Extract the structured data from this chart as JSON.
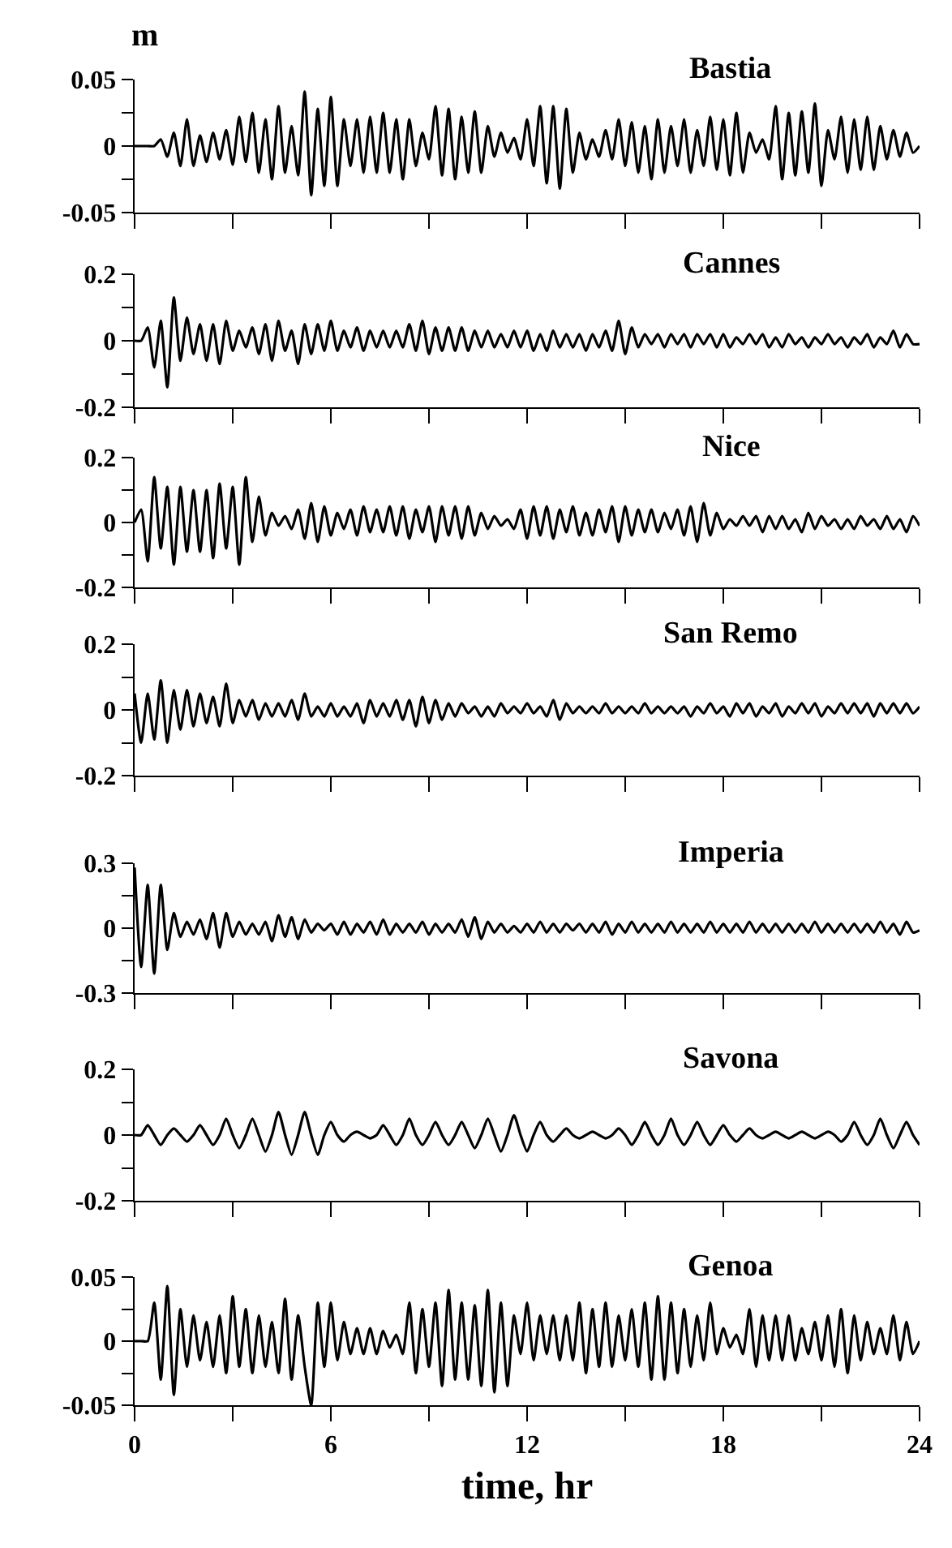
{
  "chart_data": [
    {
      "type": "line",
      "title": "Bastia",
      "ylabel": "m",
      "tick_labels": "y",
      "xlim": [
        0,
        24
      ],
      "xticks": [
        0,
        {
          "value": 3,
          "label": null
        },
        6,
        {
          "value": 9,
          "label": null
        },
        12,
        {
          "value": 15,
          "label": null
        },
        18,
        {
          "value": 21,
          "label": null
        },
        24
      ],
      "ylim": [
        -0.05,
        0.05
      ],
      "yticks": [
        -0.05,
        {
          "value": -0.025,
          "label": null
        },
        0,
        {
          "value": 0.025,
          "label": null
        },
        0.05
      ],
      "x": [
        0,
        0.2,
        0.4,
        0.6,
        0.8,
        1,
        1.2,
        1.4,
        1.6,
        1.8,
        2,
        2.2,
        2.4,
        2.6,
        2.8,
        3,
        3.2,
        3.4,
        3.6,
        3.8,
        4,
        4.2,
        4.4,
        4.6,
        4.8,
        5,
        5.2,
        5.4,
        5.6,
        5.8,
        6,
        6.2,
        6.4,
        6.6,
        6.8,
        7,
        7.2,
        7.4,
        7.6,
        7.8,
        8,
        8.2,
        8.4,
        8.6,
        8.8,
        9,
        9.2,
        9.4,
        9.6,
        9.8,
        10,
        10.2,
        10.4,
        10.6,
        10.8,
        11,
        11.2,
        11.4,
        11.6,
        11.8,
        12,
        12.2,
        12.4,
        12.6,
        12.8,
        13,
        13.2,
        13.4,
        13.6,
        13.8,
        14,
        14.2,
        14.4,
        14.6,
        14.8,
        15,
        15.2,
        15.4,
        15.6,
        15.8,
        16,
        16.2,
        16.4,
        16.6,
        16.8,
        17,
        17.2,
        17.4,
        17.6,
        17.8,
        18,
        18.2,
        18.4,
        18.6,
        18.8,
        19,
        19.2,
        19.4,
        19.6,
        19.8,
        20,
        20.2,
        20.4,
        20.6,
        20.8,
        21,
        21.2,
        21.4,
        21.6,
        21.8,
        22,
        22.2,
        22.4,
        22.6,
        22.8,
        23,
        23.2,
        23.4,
        23.6,
        23.8,
        24
      ],
      "series": [
        {
          "color": "#000000",
          "values": [
            0,
            0,
            0,
            0,
            0.005,
            -0.008,
            0.01,
            -0.015,
            0.02,
            -0.015,
            0.008,
            -0.012,
            0.01,
            -0.01,
            0.012,
            -0.014,
            0.022,
            -0.012,
            0.025,
            -0.02,
            0.02,
            -0.025,
            0.03,
            -0.02,
            0.015,
            -0.022,
            0.041,
            -0.037,
            0.028,
            -0.03,
            0.037,
            -0.03,
            0.02,
            -0.015,
            0.02,
            -0.02,
            0.022,
            -0.02,
            0.025,
            -0.02,
            0.02,
            -0.025,
            0.02,
            -0.015,
            0.01,
            -0.01,
            0.03,
            -0.022,
            0.028,
            -0.025,
            0.022,
            -0.02,
            0.026,
            -0.02,
            0.015,
            -0.008,
            0.01,
            -0.005,
            0.006,
            -0.01,
            0.02,
            -0.015,
            0.03,
            -0.028,
            0.03,
            -0.032,
            0.028,
            -0.02,
            0.01,
            -0.01,
            0.005,
            -0.008,
            0.012,
            -0.01,
            0.02,
            -0.015,
            0.018,
            -0.02,
            0.015,
            -0.025,
            0.02,
            -0.02,
            0.015,
            -0.015,
            0.02,
            -0.02,
            0.012,
            -0.015,
            0.022,
            -0.018,
            0.02,
            -0.022,
            0.025,
            -0.02,
            0.01,
            -0.005,
            0.005,
            -0.01,
            0.03,
            -0.025,
            0.025,
            -0.022,
            0.026,
            -0.02,
            0.032,
            -0.03,
            0.012,
            -0.01,
            0.022,
            -0.02,
            0.02,
            -0.018,
            0.022,
            -0.018,
            0.015,
            -0.01,
            0.012,
            -0.008,
            0.01,
            -0.005,
            0
          ]
        }
      ]
    },
    {
      "type": "line",
      "title": "Cannes",
      "tick_labels": "y",
      "xlim": [
        0,
        24
      ],
      "xticks": [
        0,
        {
          "value": 3,
          "label": null
        },
        6,
        {
          "value": 9,
          "label": null
        },
        12,
        {
          "value": 15,
          "label": null
        },
        18,
        {
          "value": 21,
          "label": null
        },
        24
      ],
      "ylim": [
        -0.2,
        0.2
      ],
      "yticks": [
        -0.2,
        {
          "value": -0.1,
          "label": null
        },
        0,
        {
          "value": 0.1,
          "label": null
        },
        0.2
      ],
      "x": [
        0,
        0.2,
        0.4,
        0.6,
        0.8,
        1,
        1.2,
        1.4,
        1.6,
        1.8,
        2,
        2.2,
        2.4,
        2.6,
        2.8,
        3,
        3.2,
        3.4,
        3.6,
        3.8,
        4,
        4.2,
        4.4,
        4.6,
        4.8,
        5,
        5.2,
        5.4,
        5.6,
        5.8,
        6,
        6.2,
        6.4,
        6.6,
        6.8,
        7,
        7.2,
        7.4,
        7.6,
        7.8,
        8,
        8.2,
        8.4,
        8.6,
        8.8,
        9,
        9.2,
        9.4,
        9.6,
        9.8,
        10,
        10.2,
        10.4,
        10.6,
        10.8,
        11,
        11.2,
        11.4,
        11.6,
        11.8,
        12,
        12.2,
        12.4,
        12.6,
        12.8,
        13,
        13.2,
        13.4,
        13.6,
        13.8,
        14,
        14.2,
        14.4,
        14.6,
        14.8,
        15,
        15.2,
        15.4,
        15.6,
        15.8,
        16,
        16.2,
        16.4,
        16.6,
        16.8,
        17,
        17.2,
        17.4,
        17.6,
        17.8,
        18,
        18.2,
        18.4,
        18.6,
        18.8,
        19,
        19.2,
        19.4,
        19.6,
        19.8,
        20,
        20.2,
        20.4,
        20.6,
        20.8,
        21,
        21.2,
        21.4,
        21.6,
        21.8,
        22,
        22.2,
        22.4,
        22.6,
        22.8,
        23,
        23.2,
        23.4,
        23.6,
        23.8,
        24
      ],
      "series": [
        {
          "color": "#000000",
          "values": [
            0,
            0,
            0.04,
            -0.08,
            0.06,
            -0.14,
            0.13,
            -0.06,
            0.07,
            -0.04,
            0.05,
            -0.06,
            0.05,
            -0.07,
            0.06,
            -0.03,
            0.03,
            -0.02,
            0.04,
            -0.04,
            0.05,
            -0.06,
            0.06,
            -0.03,
            0.03,
            -0.07,
            0.05,
            -0.04,
            0.05,
            -0.03,
            0.06,
            -0.03,
            0.03,
            -0.02,
            0.04,
            -0.03,
            0.03,
            -0.02,
            0.03,
            -0.02,
            0.03,
            -0.02,
            0.05,
            -0.03,
            0.06,
            -0.04,
            0.04,
            -0.03,
            0.04,
            -0.03,
            0.04,
            -0.03,
            0.03,
            -0.02,
            0.03,
            -0.02,
            0.02,
            -0.02,
            0.03,
            -0.02,
            0.03,
            -0.03,
            0.02,
            -0.03,
            0.03,
            -0.02,
            0.02,
            -0.02,
            0.02,
            -0.03,
            0.02,
            -0.02,
            0.03,
            -0.03,
            0.06,
            -0.04,
            0.04,
            -0.02,
            0.02,
            -0.01,
            0.02,
            -0.02,
            0.02,
            -0.01,
            0.02,
            -0.02,
            0.02,
            -0.01,
            0.02,
            -0.02,
            0.02,
            -0.02,
            0.01,
            -0.01,
            0.02,
            -0.01,
            0.02,
            -0.02,
            0.01,
            -0.02,
            0.02,
            -0.01,
            0.01,
            -0.02,
            0.01,
            -0.01,
            0.02,
            -0.01,
            0.01,
            -0.02,
            0.01,
            -0.01,
            0.02,
            -0.02,
            0.01,
            -0.01,
            0.03,
            -0.02,
            0.02,
            -0.01,
            -0.01
          ]
        }
      ]
    },
    {
      "type": "line",
      "title": "Nice",
      "tick_labels": "y",
      "xlim": [
        0,
        24
      ],
      "xticks": [
        0,
        {
          "value": 3,
          "label": null
        },
        6,
        {
          "value": 9,
          "label": null
        },
        12,
        {
          "value": 15,
          "label": null
        },
        18,
        {
          "value": 21,
          "label": null
        },
        24
      ],
      "ylim": [
        -0.2,
        0.2
      ],
      "yticks": [
        -0.2,
        {
          "value": -0.1,
          "label": null
        },
        0,
        {
          "value": 0.1,
          "label": null
        },
        0.2
      ],
      "x": [
        0,
        0.2,
        0.4,
        0.6,
        0.8,
        1,
        1.2,
        1.4,
        1.6,
        1.8,
        2,
        2.2,
        2.4,
        2.6,
        2.8,
        3,
        3.2,
        3.4,
        3.6,
        3.8,
        4,
        4.2,
        4.4,
        4.6,
        4.8,
        5,
        5.2,
        5.4,
        5.6,
        5.8,
        6,
        6.2,
        6.4,
        6.6,
        6.8,
        7,
        7.2,
        7.4,
        7.6,
        7.8,
        8,
        8.2,
        8.4,
        8.6,
        8.8,
        9,
        9.2,
        9.4,
        9.6,
        9.8,
        10,
        10.2,
        10.4,
        10.6,
        10.8,
        11,
        11.2,
        11.4,
        11.6,
        11.8,
        12,
        12.2,
        12.4,
        12.6,
        12.8,
        13,
        13.2,
        13.4,
        13.6,
        13.8,
        14,
        14.2,
        14.4,
        14.6,
        14.8,
        15,
        15.2,
        15.4,
        15.6,
        15.8,
        16,
        16.2,
        16.4,
        16.6,
        16.8,
        17,
        17.2,
        17.4,
        17.6,
        17.8,
        18,
        18.2,
        18.4,
        18.6,
        18.8,
        19,
        19.2,
        19.4,
        19.6,
        19.8,
        20,
        20.2,
        20.4,
        20.6,
        20.8,
        21,
        21.2,
        21.4,
        21.6,
        21.8,
        22,
        22.2,
        22.4,
        22.6,
        22.8,
        23,
        23.2,
        23.4,
        23.6,
        23.8,
        24
      ],
      "series": [
        {
          "color": "#000000",
          "values": [
            0,
            0.04,
            -0.12,
            0.14,
            -0.08,
            0.11,
            -0.13,
            0.11,
            -0.09,
            0.1,
            -0.09,
            0.1,
            -0.11,
            0.12,
            -0.08,
            0.11,
            -0.13,
            0.14,
            -0.06,
            0.08,
            -0.04,
            0.03,
            -0.01,
            0.02,
            -0.02,
            0.04,
            -0.05,
            0.06,
            -0.06,
            0.05,
            -0.04,
            0.03,
            -0.02,
            0.04,
            -0.04,
            0.05,
            -0.03,
            0.04,
            -0.03,
            0.05,
            -0.04,
            0.05,
            -0.05,
            0.04,
            -0.03,
            0.05,
            -0.06,
            0.05,
            -0.04,
            0.05,
            -0.05,
            0.05,
            -0.04,
            0.03,
            -0.02,
            0.02,
            -0.01,
            0.01,
            -0.02,
            0.04,
            -0.05,
            0.05,
            -0.04,
            0.05,
            -0.05,
            0.04,
            -0.03,
            0.05,
            -0.04,
            0.03,
            -0.04,
            0.04,
            -0.03,
            0.05,
            -0.06,
            0.05,
            -0.04,
            0.04,
            -0.03,
            0.04,
            -0.03,
            0.03,
            -0.02,
            0.04,
            -0.04,
            0.05,
            -0.06,
            0.06,
            -0.04,
            0.03,
            -0.02,
            0.01,
            -0.01,
            0.02,
            -0.01,
            0.02,
            -0.03,
            0.02,
            -0.02,
            0.02,
            -0.02,
            0.01,
            -0.03,
            0.03,
            -0.02,
            0.02,
            -0.01,
            0.01,
            -0.02,
            0.01,
            -0.02,
            0.02,
            -0.01,
            0.01,
            -0.02,
            0.02,
            -0.02,
            0.01,
            -0.03,
            0.02,
            -0.01
          ]
        }
      ]
    },
    {
      "type": "line",
      "title": "San Remo",
      "tick_labels": "y",
      "xlim": [
        0,
        24
      ],
      "xticks": [
        0,
        {
          "value": 3,
          "label": null
        },
        6,
        {
          "value": 9,
          "label": null
        },
        12,
        {
          "value": 15,
          "label": null
        },
        18,
        {
          "value": 21,
          "label": null
        },
        24
      ],
      "ylim": [
        -0.2,
        0.2
      ],
      "yticks": [
        -0.2,
        {
          "value": -0.1,
          "label": null
        },
        0,
        {
          "value": 0.1,
          "label": null
        },
        0.2
      ],
      "x": [
        0,
        0.2,
        0.4,
        0.6,
        0.8,
        1,
        1.2,
        1.4,
        1.6,
        1.8,
        2,
        2.2,
        2.4,
        2.6,
        2.8,
        3,
        3.2,
        3.4,
        3.6,
        3.8,
        4,
        4.2,
        4.4,
        4.6,
        4.8,
        5,
        5.2,
        5.4,
        5.6,
        5.8,
        6,
        6.2,
        6.4,
        6.6,
        6.8,
        7,
        7.2,
        7.4,
        7.6,
        7.8,
        8,
        8.2,
        8.4,
        8.6,
        8.8,
        9,
        9.2,
        9.4,
        9.6,
        9.8,
        10,
        10.2,
        10.4,
        10.6,
        10.8,
        11,
        11.2,
        11.4,
        11.6,
        11.8,
        12,
        12.2,
        12.4,
        12.6,
        12.8,
        13,
        13.2,
        13.4,
        13.6,
        13.8,
        14,
        14.2,
        14.4,
        14.6,
        14.8,
        15,
        15.2,
        15.4,
        15.6,
        15.8,
        16,
        16.2,
        16.4,
        16.6,
        16.8,
        17,
        17.2,
        17.4,
        17.6,
        17.8,
        18,
        18.2,
        18.4,
        18.6,
        18.8,
        19,
        19.2,
        19.4,
        19.6,
        19.8,
        20,
        20.2,
        20.4,
        20.6,
        20.8,
        21,
        21.2,
        21.4,
        21.6,
        21.8,
        22,
        22.2,
        22.4,
        22.6,
        22.8,
        23,
        23.2,
        23.4,
        23.6,
        23.8,
        24
      ],
      "series": [
        {
          "color": "#000000",
          "values": [
            0.05,
            -0.1,
            0.05,
            -0.09,
            0.09,
            -0.1,
            0.06,
            -0.06,
            0.06,
            -0.05,
            0.05,
            -0.04,
            0.04,
            -0.05,
            0.08,
            -0.04,
            0.03,
            -0.02,
            0.03,
            -0.03,
            0.02,
            -0.02,
            0.02,
            -0.02,
            0.03,
            -0.03,
            0.05,
            -0.02,
            0.01,
            -0.02,
            0.02,
            -0.02,
            0.01,
            -0.02,
            0.02,
            -0.04,
            0.03,
            -0.02,
            0.02,
            -0.02,
            0.03,
            -0.03,
            0.03,
            -0.05,
            0.04,
            -0.04,
            0.03,
            -0.03,
            0.02,
            -0.02,
            0.02,
            -0.01,
            0.01,
            -0.02,
            0.01,
            -0.02,
            0.02,
            -0.01,
            0.01,
            -0.01,
            0.02,
            -0.01,
            0.01,
            -0.02,
            0.03,
            -0.03,
            0.02,
            -0.01,
            0.01,
            -0.01,
            0.01,
            -0.01,
            0.02,
            -0.01,
            0.01,
            -0.01,
            0.01,
            -0.01,
            0.02,
            -0.01,
            0.01,
            -0.01,
            0.01,
            -0.01,
            0.01,
            -0.02,
            0.01,
            -0.01,
            0.02,
            -0.01,
            0.01,
            -0.02,
            0.02,
            -0.01,
            0.02,
            -0.02,
            0.01,
            -0.01,
            0.02,
            -0.02,
            0.01,
            -0.01,
            0.02,
            -0.01,
            0.02,
            -0.02,
            0.01,
            -0.01,
            0.02,
            -0.01,
            0.02,
            -0.01,
            0.02,
            -0.02,
            0.02,
            -0.01,
            0.02,
            -0.01,
            0.02,
            -0.01,
            0.01
          ]
        }
      ]
    },
    {
      "type": "line",
      "title": "Imperia",
      "tick_labels": "y",
      "xlim": [
        0,
        24
      ],
      "xticks": [
        0,
        {
          "value": 3,
          "label": null
        },
        6,
        {
          "value": 9,
          "label": null
        },
        12,
        {
          "value": 15,
          "label": null
        },
        18,
        {
          "value": 21,
          "label": null
        },
        24
      ],
      "ylim": [
        -0.3,
        0.3
      ],
      "yticks": [
        -0.3,
        {
          "value": -0.15,
          "label": null
        },
        0,
        {
          "value": 0.15,
          "label": null
        },
        0.3
      ],
      "x": [
        0,
        0.2,
        0.4,
        0.6,
        0.8,
        1,
        1.2,
        1.4,
        1.6,
        1.8,
        2,
        2.2,
        2.4,
        2.6,
        2.8,
        3,
        3.2,
        3.4,
        3.6,
        3.8,
        4,
        4.2,
        4.4,
        4.6,
        4.8,
        5,
        5.2,
        5.4,
        5.6,
        5.8,
        6,
        6.2,
        6.4,
        6.6,
        6.8,
        7,
        7.2,
        7.4,
        7.6,
        7.8,
        8,
        8.2,
        8.4,
        8.6,
        8.8,
        9,
        9.2,
        9.4,
        9.6,
        9.8,
        10,
        10.2,
        10.4,
        10.6,
        10.8,
        11,
        11.2,
        11.4,
        11.6,
        11.8,
        12,
        12.2,
        12.4,
        12.6,
        12.8,
        13,
        13.2,
        13.4,
        13.6,
        13.8,
        14,
        14.2,
        14.4,
        14.6,
        14.8,
        15,
        15.2,
        15.4,
        15.6,
        15.8,
        16,
        16.2,
        16.4,
        16.6,
        16.8,
        17,
        17.2,
        17.4,
        17.6,
        17.8,
        18,
        18.2,
        18.4,
        18.6,
        18.8,
        19,
        19.2,
        19.4,
        19.6,
        19.8,
        20,
        20.2,
        20.4,
        20.6,
        20.8,
        21,
        21.2,
        21.4,
        21.6,
        21.8,
        22,
        22.2,
        22.4,
        22.6,
        22.8,
        23,
        23.2,
        23.4,
        23.6,
        23.8,
        24
      ],
      "series": [
        {
          "color": "#000000",
          "values": [
            0.28,
            -0.18,
            0.2,
            -0.21,
            0.2,
            -0.1,
            0.07,
            -0.04,
            0.03,
            -0.03,
            0.04,
            -0.05,
            0.07,
            -0.09,
            0.07,
            -0.04,
            0.03,
            -0.03,
            0.02,
            -0.03,
            0.03,
            -0.06,
            0.06,
            -0.04,
            0.05,
            -0.05,
            0.04,
            -0.02,
            0.02,
            -0.01,
            0.02,
            -0.03,
            0.03,
            -0.03,
            0.02,
            -0.02,
            0.03,
            -0.03,
            0.04,
            -0.03,
            0.02,
            -0.02,
            0.02,
            -0.02,
            0.03,
            -0.03,
            0.02,
            -0.02,
            0.02,
            -0.02,
            0.04,
            -0.04,
            0.05,
            -0.05,
            0.03,
            -0.02,
            0.02,
            -0.02,
            0.01,
            -0.02,
            0.02,
            -0.02,
            0.03,
            -0.02,
            0.02,
            -0.02,
            0.02,
            -0.01,
            0.02,
            -0.02,
            0.02,
            -0.02,
            0.03,
            -0.03,
            0.02,
            -0.02,
            0.03,
            -0.02,
            0.02,
            -0.02,
            0.02,
            -0.02,
            0.03,
            -0.02,
            0.02,
            -0.02,
            0.02,
            -0.02,
            0.03,
            -0.02,
            0.02,
            -0.02,
            0.02,
            -0.02,
            0.03,
            -0.02,
            0.02,
            -0.02,
            0.02,
            -0.02,
            0.02,
            -0.02,
            0.02,
            -0.02,
            0.03,
            -0.02,
            0.02,
            -0.02,
            0.02,
            -0.02,
            0.02,
            -0.02,
            0.02,
            -0.02,
            0.03,
            -0.02,
            0.02,
            -0.03,
            0.03,
            -0.02,
            -0.01
          ]
        }
      ]
    },
    {
      "type": "line",
      "title": "Savona",
      "tick_labels": "y",
      "xlim": [
        0,
        24
      ],
      "xticks": [
        0,
        {
          "value": 3,
          "label": null
        },
        6,
        {
          "value": 9,
          "label": null
        },
        12,
        {
          "value": 15,
          "label": null
        },
        18,
        {
          "value": 21,
          "label": null
        },
        24
      ],
      "ylim": [
        -0.2,
        0.2
      ],
      "yticks": [
        -0.2,
        {
          "value": -0.1,
          "label": null
        },
        0,
        {
          "value": 0.1,
          "label": null
        },
        0.2
      ],
      "x": [
        0,
        0.2,
        0.4,
        0.6,
        0.8,
        1,
        1.2,
        1.4,
        1.6,
        1.8,
        2,
        2.2,
        2.4,
        2.6,
        2.8,
        3,
        3.2,
        3.4,
        3.6,
        3.8,
        4,
        4.2,
        4.4,
        4.6,
        4.8,
        5,
        5.2,
        5.4,
        5.6,
        5.8,
        6,
        6.2,
        6.4,
        6.6,
        6.8,
        7,
        7.2,
        7.4,
        7.6,
        7.8,
        8,
        8.2,
        8.4,
        8.6,
        8.8,
        9,
        9.2,
        9.4,
        9.6,
        9.8,
        10,
        10.2,
        10.4,
        10.6,
        10.8,
        11,
        11.2,
        11.4,
        11.6,
        11.8,
        12,
        12.2,
        12.4,
        12.6,
        12.8,
        13,
        13.2,
        13.4,
        13.6,
        13.8,
        14,
        14.2,
        14.4,
        14.6,
        14.8,
        15,
        15.2,
        15.4,
        15.6,
        15.8,
        16,
        16.2,
        16.4,
        16.6,
        16.8,
        17,
        17.2,
        17.4,
        17.6,
        17.8,
        18,
        18.2,
        18.4,
        18.6,
        18.8,
        19,
        19.2,
        19.4,
        19.6,
        19.8,
        20,
        20.2,
        20.4,
        20.6,
        20.8,
        21,
        21.2,
        21.4,
        21.6,
        21.8,
        22,
        22.2,
        22.4,
        22.6,
        22.8,
        23,
        23.2,
        23.4,
        23.6,
        23.8,
        24
      ],
      "series": [
        {
          "color": "#000000",
          "values": [
            0,
            0,
            0.03,
            0,
            -0.03,
            0,
            0.02,
            0,
            -0.02,
            0,
            0.03,
            0,
            -0.03,
            0,
            0.05,
            0,
            -0.04,
            0,
            0.05,
            0,
            -0.05,
            0,
            0.07,
            0,
            -0.06,
            0,
            0.07,
            0,
            -0.06,
            0,
            0.04,
            0,
            -0.02,
            0,
            0.01,
            0,
            -0.01,
            0,
            0.03,
            0,
            -0.03,
            0,
            0.05,
            0,
            -0.03,
            0,
            0.04,
            0,
            -0.03,
            0,
            0.04,
            0,
            -0.04,
            0,
            0.05,
            0,
            -0.05,
            0,
            0.06,
            0,
            -0.05,
            0,
            0.04,
            0,
            -0.02,
            0,
            0.02,
            0,
            -0.01,
            0,
            0.01,
            0,
            -0.01,
            0,
            0.02,
            0,
            -0.03,
            0,
            0.04,
            0,
            -0.03,
            0,
            0.05,
            0,
            -0.03,
            0,
            0.04,
            0,
            -0.03,
            0,
            0.03,
            0,
            -0.02,
            0,
            0.02,
            0,
            -0.01,
            0,
            0.01,
            0,
            -0.01,
            0,
            0.01,
            0,
            -0.01,
            0,
            0.01,
            0,
            -0.02,
            0,
            0.04,
            0,
            -0.03,
            0,
            0.05,
            0,
            -0.04,
            0,
            0.04,
            0,
            -0.03
          ]
        }
      ]
    },
    {
      "type": "line",
      "title": "Genoa",
      "xlabel": "time, hr",
      "xlim": [
        0,
        24
      ],
      "xticks": [
        0,
        {
          "value": 3,
          "label": null
        },
        6,
        {
          "value": 9,
          "label": null
        },
        12,
        {
          "value": 15,
          "label": null
        },
        18,
        {
          "value": 21,
          "label": null
        },
        24
      ],
      "ylim": [
        -0.05,
        0.05
      ],
      "yticks": [
        -0.05,
        {
          "value": -0.025,
          "label": null
        },
        0,
        {
          "value": 0.025,
          "label": null
        },
        0.05
      ],
      "x": [
        0,
        0.2,
        0.4,
        0.6,
        0.8,
        1,
        1.2,
        1.4,
        1.6,
        1.8,
        2,
        2.2,
        2.4,
        2.6,
        2.8,
        3,
        3.2,
        3.4,
        3.6,
        3.8,
        4,
        4.2,
        4.4,
        4.6,
        4.8,
        5,
        5.2,
        5.4,
        5.6,
        5.8,
        6,
        6.2,
        6.4,
        6.6,
        6.8,
        7,
        7.2,
        7.4,
        7.6,
        7.8,
        8,
        8.2,
        8.4,
        8.6,
        8.8,
        9,
        9.2,
        9.4,
        9.6,
        9.8,
        10,
        10.2,
        10.4,
        10.6,
        10.8,
        11,
        11.2,
        11.4,
        11.6,
        11.8,
        12,
        12.2,
        12.4,
        12.6,
        12.8,
        13,
        13.2,
        13.4,
        13.6,
        13.8,
        14,
        14.2,
        14.4,
        14.6,
        14.8,
        15,
        15.2,
        15.4,
        15.6,
        15.8,
        16,
        16.2,
        16.4,
        16.6,
        16.8,
        17,
        17.2,
        17.4,
        17.6,
        17.8,
        18,
        18.2,
        18.4,
        18.6,
        18.8,
        19,
        19.2,
        19.4,
        19.6,
        19.8,
        20,
        20.2,
        20.4,
        20.6,
        20.8,
        21,
        21.2,
        21.4,
        21.6,
        21.8,
        22,
        22.2,
        22.4,
        22.6,
        22.8,
        23,
        23.2,
        23.4,
        23.6,
        23.8,
        24
      ],
      "series": [
        {
          "color": "#000000",
          "values": [
            0,
            0,
            0,
            0.03,
            -0.03,
            0.043,
            -0.042,
            0.025,
            -0.02,
            0.02,
            -0.015,
            0.015,
            -0.02,
            0.02,
            -0.025,
            0.035,
            -0.02,
            0.025,
            -0.025,
            0.02,
            -0.02,
            0.015,
            -0.025,
            0.033,
            -0.03,
            0.02,
            -0.02,
            -0.05,
            0.03,
            -0.02,
            0.03,
            -0.015,
            0.015,
            -0.01,
            0.01,
            -0.01,
            0.01,
            -0.01,
            0.008,
            -0.005,
            0.005,
            -0.01,
            0.03,
            -0.025,
            0.025,
            -0.02,
            0.03,
            -0.035,
            0.04,
            -0.03,
            0.03,
            -0.03,
            0.028,
            -0.035,
            0.04,
            -0.04,
            0.03,
            -0.035,
            0.02,
            -0.01,
            0.03,
            -0.015,
            0.02,
            -0.01,
            0.02,
            -0.015,
            0.02,
            -0.015,
            0.03,
            -0.025,
            0.025,
            -0.02,
            0.03,
            -0.02,
            0.02,
            -0.015,
            0.025,
            -0.02,
            0.03,
            -0.03,
            0.035,
            -0.03,
            0.03,
            -0.025,
            0.025,
            -0.02,
            0.02,
            -0.015,
            0.03,
            -0.01,
            0.01,
            -0.005,
            0.005,
            -0.01,
            0.025,
            -0.02,
            0.02,
            -0.015,
            0.02,
            -0.015,
            0.02,
            -0.015,
            0.01,
            -0.01,
            0.015,
            -0.015,
            0.02,
            -0.02,
            0.025,
            -0.025,
            0.02,
            -0.015,
            0.015,
            -0.01,
            0.01,
            -0.01,
            0.02,
            -0.015,
            0.015,
            -0.01,
            0
          ]
        }
      ]
    }
  ]
}
